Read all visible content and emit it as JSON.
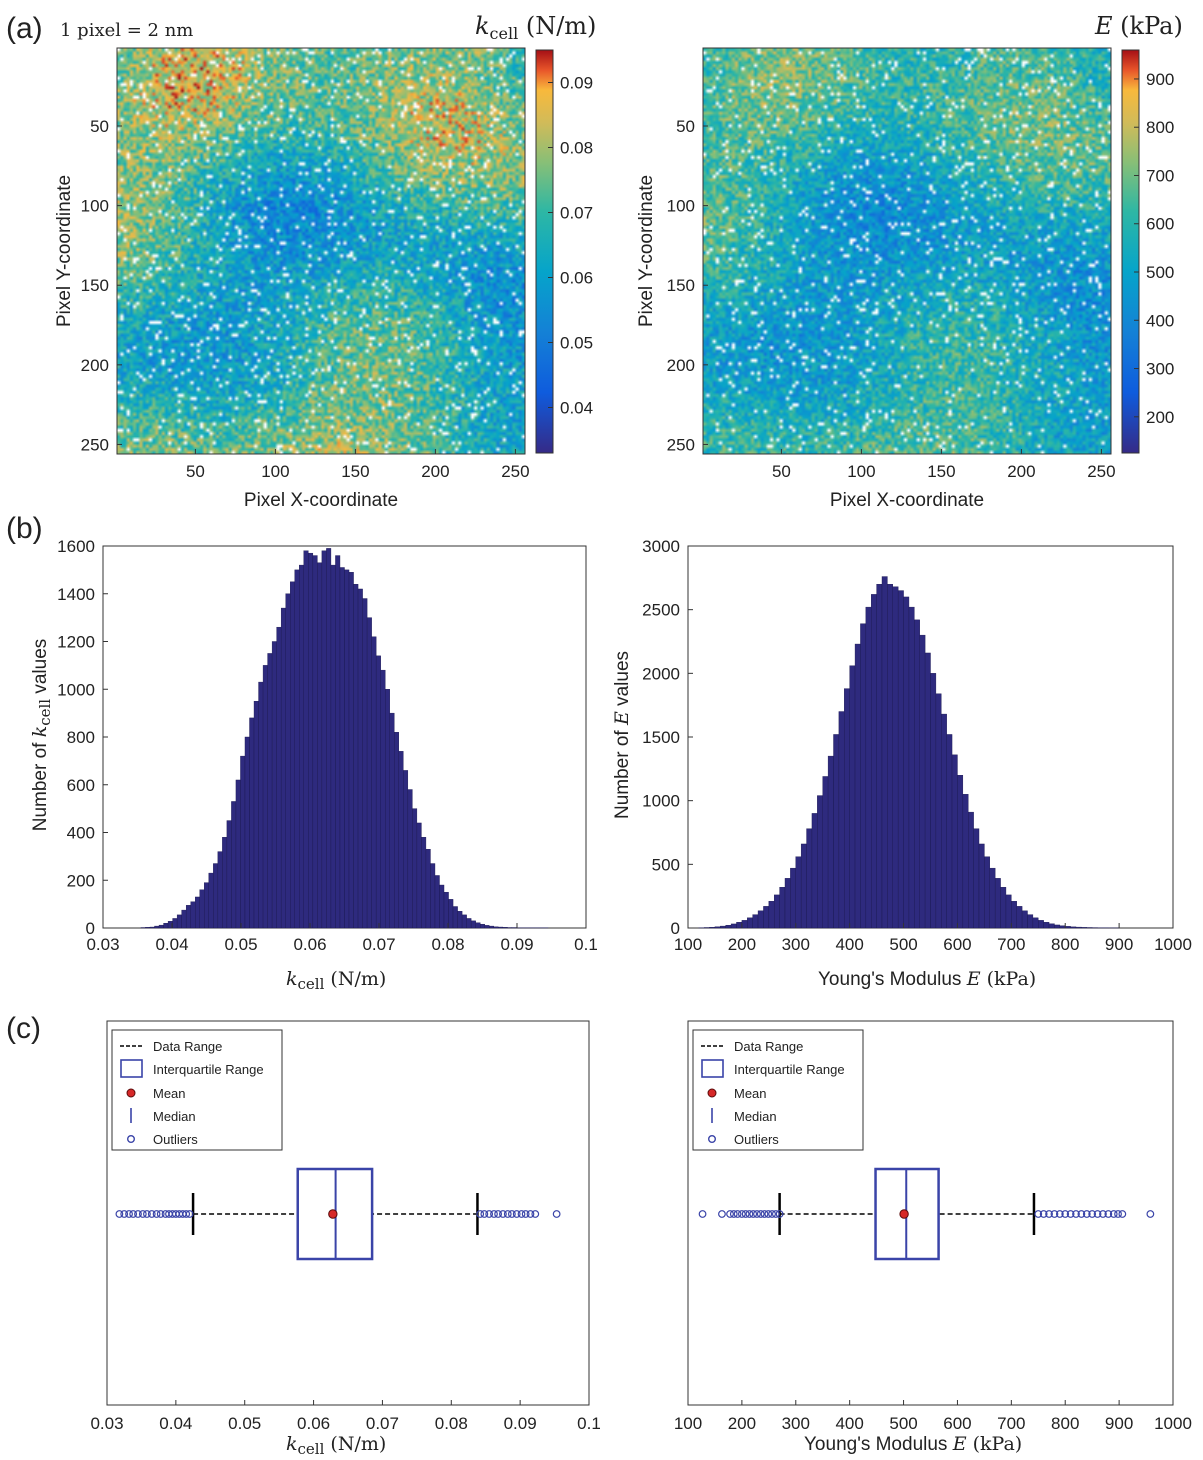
{
  "panels": {
    "a": "(a)",
    "b": "(b)",
    "c": "(c)"
  },
  "annotation": "1 pixel = 2 nm",
  "colors": {
    "bar": "#2e2a7e",
    "bar_edge": "#1a1750",
    "box": "#3a44a8",
    "mean": "#d62828",
    "outlier": "#3a44a8",
    "whisker": "#000000"
  },
  "chart_data": [
    {
      "id": "map_k",
      "type": "heatmap",
      "colormap": "parula",
      "title": "k_cell (N/m)",
      "xlabel": "Pixel X-coordinate",
      "ylabel": "Pixel Y-coordinate",
      "xlim": [
        1,
        256
      ],
      "ylim": [
        1,
        256
      ],
      "y_reversed": true,
      "xticks": [
        "50",
        "100",
        "150",
        "200",
        "250"
      ],
      "yticks": [
        "50",
        "100",
        "150",
        "200",
        "250"
      ],
      "colorbar_range": [
        0.033,
        0.095
      ],
      "colorbar_ticks": [
        "0.04",
        "0.05",
        "0.06",
        "0.07",
        "0.08",
        "0.09"
      ]
    },
    {
      "id": "map_E",
      "type": "heatmap",
      "colormap": "parula",
      "title": "E (kPa)",
      "xlabel": "Pixel X-coordinate",
      "ylabel": "Pixel Y-coordinate",
      "xlim": [
        1,
        256
      ],
      "ylim": [
        1,
        256
      ],
      "y_reversed": true,
      "xticks": [
        "50",
        "100",
        "150",
        "200",
        "250"
      ],
      "yticks": [
        "50",
        "100",
        "150",
        "200",
        "250"
      ],
      "colorbar_range": [
        125,
        960
      ],
      "colorbar_ticks": [
        "200",
        "300",
        "400",
        "500",
        "600",
        "700",
        "800",
        "900"
      ]
    },
    {
      "id": "hist_k",
      "type": "bar",
      "xlabel": "k_cell (N/m)",
      "ylabel": "Number of k_cell values",
      "xlim": [
        0.03,
        0.1
      ],
      "ylim": [
        0,
        1600
      ],
      "xticks": [
        "0.03",
        "0.04",
        "0.05",
        "0.06",
        "0.07",
        "0.08",
        "0.09",
        "0.1"
      ],
      "yticks": [
        "0",
        "200",
        "400",
        "600",
        "800",
        "1000",
        "1200",
        "1400",
        "1600"
      ],
      "bin_range": [
        0.0355,
        0.0945
      ],
      "values": [
        2,
        3,
        4,
        8,
        12,
        20,
        28,
        40,
        55,
        75,
        95,
        110,
        130,
        160,
        190,
        230,
        270,
        320,
        380,
        450,
        530,
        620,
        720,
        800,
        880,
        950,
        1030,
        1100,
        1150,
        1200,
        1260,
        1340,
        1400,
        1450,
        1500,
        1520,
        1580,
        1570,
        1560,
        1530,
        1580,
        1590,
        1520,
        1560,
        1510,
        1500,
        1490,
        1440,
        1420,
        1380,
        1300,
        1220,
        1140,
        1080,
        1000,
        900,
        820,
        740,
        660,
        580,
        500,
        440,
        380,
        330,
        270,
        220,
        180,
        150,
        120,
        90,
        70,
        55,
        40,
        30,
        22,
        16,
        11,
        8,
        5,
        4,
        3,
        2,
        2,
        1,
        1,
        1,
        1,
        1,
        1,
        1
      ]
    },
    {
      "id": "hist_E",
      "type": "bar",
      "xlabel": "Young's Modulus E (kPa)",
      "ylabel": "Number of E values",
      "xlim": [
        100,
        1000
      ],
      "ylim": [
        0,
        3000
      ],
      "xticks": [
        "100",
        "200",
        "300",
        "400",
        "500",
        "600",
        "700",
        "800",
        "900",
        "1000"
      ],
      "yticks": [
        "0",
        "500",
        "1000",
        "1500",
        "2000",
        "2500",
        "3000"
      ],
      "bin_range": [
        120,
        900
      ],
      "values": [
        2,
        4,
        6,
        10,
        15,
        22,
        32,
        45,
        60,
        80,
        105,
        135,
        170,
        210,
        260,
        320,
        390,
        470,
        560,
        660,
        780,
        900,
        1040,
        1190,
        1350,
        1520,
        1700,
        1880,
        2060,
        2230,
        2390,
        2520,
        2620,
        2700,
        2760,
        2700,
        2680,
        2650,
        2600,
        2520,
        2420,
        2300,
        2160,
        2000,
        1840,
        1680,
        1520,
        1360,
        1200,
        1050,
        910,
        780,
        660,
        560,
        470,
        390,
        320,
        260,
        210,
        170,
        135,
        105,
        80,
        60,
        45,
        33,
        24,
        18,
        13,
        9,
        7,
        5,
        4,
        3,
        2,
        2,
        1,
        1
      ]
    },
    {
      "id": "box_k",
      "type": "box",
      "xlabel": "k_cell (N/m)",
      "xlim": [
        0.03,
        0.1
      ],
      "xticks": [
        "0.03",
        "0.04",
        "0.05",
        "0.06",
        "0.07",
        "0.08",
        "0.09",
        "0.1"
      ],
      "whisker_low": 0.0425,
      "q1": 0.0577,
      "median": 0.0632,
      "q3": 0.0685,
      "whisker_high": 0.0838,
      "mean": 0.0628,
      "outliers": [
        0.0318,
        0.0325,
        0.0332,
        0.0338,
        0.0345,
        0.0352,
        0.0358,
        0.0365,
        0.0372,
        0.0378,
        0.0385,
        0.039,
        0.0395,
        0.04,
        0.0405,
        0.041,
        0.0415,
        0.042,
        0.0842,
        0.0848,
        0.0855,
        0.0862,
        0.0868,
        0.0875,
        0.0882,
        0.0888,
        0.0895,
        0.0902,
        0.0908,
        0.0915,
        0.0922,
        0.0953
      ],
      "legend": [
        "Data Range",
        "Interquartile Range",
        "Mean",
        "Median",
        "Outliers"
      ]
    },
    {
      "id": "box_E",
      "type": "box",
      "xlabel": "Young's Modulus E (kPa)",
      "xlim": [
        100,
        1000
      ],
      "xticks": [
        "100",
        "200",
        "300",
        "400",
        "500",
        "600",
        "700",
        "800",
        "900",
        "1000"
      ],
      "whisker_low": 270,
      "q1": 448,
      "median": 505,
      "q3": 565,
      "whisker_high": 742,
      "mean": 501,
      "outliers": [
        127,
        163,
        178,
        185,
        192,
        200,
        207,
        214,
        221,
        228,
        235,
        242,
        249,
        256,
        263,
        270,
        750,
        760,
        770,
        780,
        790,
        800,
        810,
        820,
        830,
        840,
        850,
        860,
        870,
        880,
        890,
        898,
        906,
        958
      ],
      "legend": [
        "Data Range",
        "Interquartile Range",
        "Mean",
        "Median",
        "Outliers"
      ]
    }
  ]
}
